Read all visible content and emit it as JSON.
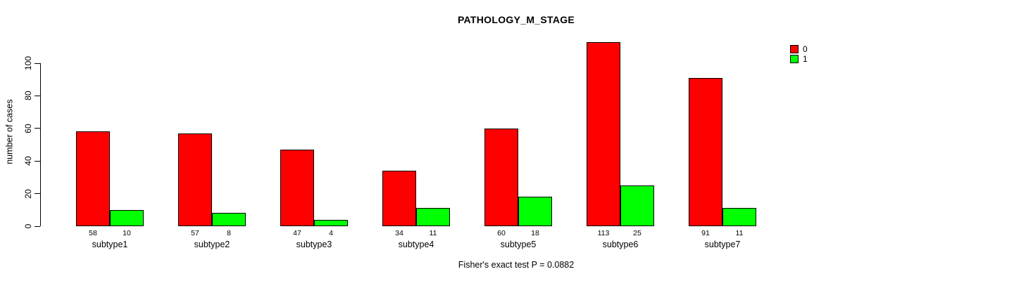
{
  "title": "PATHOLOGY_M_STAGE",
  "footer": "Fisher's exact test P = 0.0882",
  "chart_data": {
    "type": "bar",
    "title": "PATHOLOGY_M_STAGE",
    "xlabel": "",
    "ylabel": "number of cases",
    "categories": [
      "subtype1",
      "subtype2",
      "subtype3",
      "subtype4",
      "subtype5",
      "subtype6",
      "subtype7"
    ],
    "series": [
      {
        "name": "0",
        "color": "#ff0000",
        "values": [
          58,
          57,
          47,
          34,
          60,
          113,
          91
        ]
      },
      {
        "name": "1",
        "color": "#00ff00",
        "values": [
          10,
          8,
          4,
          11,
          18,
          25,
          11
        ]
      }
    ],
    "bar_value_labels": [
      [
        "58",
        "10"
      ],
      [
        "57",
        "8"
      ],
      [
        "47",
        "4"
      ],
      [
        "34",
        "11"
      ],
      [
        "60",
        "18"
      ],
      [
        "113",
        "25"
      ],
      [
        "91",
        "11"
      ]
    ],
    "yticks": [
      0,
      20,
      40,
      60,
      80,
      100
    ],
    "ylim": [
      0,
      116
    ],
    "grid": false,
    "legend_position": "top-right",
    "annotation": "Fisher's exact test P = 0.0882",
    "colors": {
      "series0": "#ff0000",
      "series1": "#00ff00",
      "axis": "#000000",
      "background": "#ffffff"
    }
  }
}
